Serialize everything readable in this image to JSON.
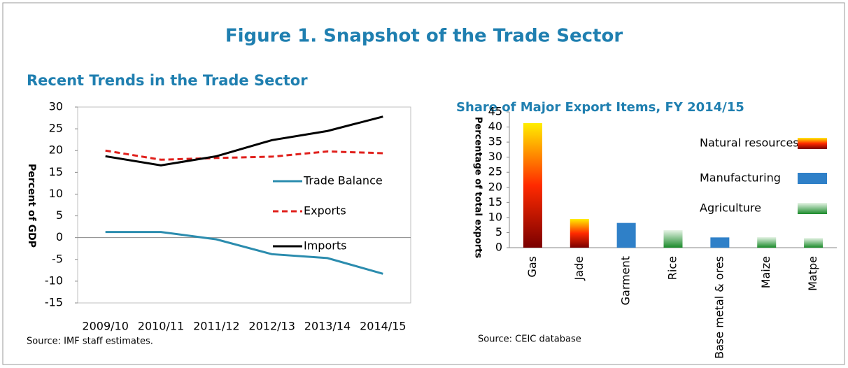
{
  "title": "Figure 1. Snapshot of the Trade Sector",
  "chart_data": [
    {
      "type": "line",
      "title": "Recent Trends in the Trade Sector",
      "y_label": "Percent of GDP",
      "source": "Source: IMF staff estimates.",
      "categories": [
        "2009/10",
        "2010/11",
        "2011/12",
        "2012/13",
        "2013/14",
        "2014/15"
      ],
      "series": [
        {
          "name": "Trade Balance",
          "color": "#2b8cae",
          "dash": false,
          "values": [
            1.3,
            1.3,
            -0.4,
            -3.8,
            -4.7,
            -8.3
          ]
        },
        {
          "name": "Exports",
          "color": "#e0201c",
          "dash": true,
          "values": [
            20.0,
            17.9,
            18.3,
            18.6,
            19.8,
            19.4
          ]
        },
        {
          "name": "Imports",
          "color": "#000000",
          "dash": false,
          "values": [
            18.7,
            16.6,
            18.7,
            22.4,
            24.5,
            27.8
          ]
        }
      ],
      "ylim": [
        -15,
        30
      ],
      "yticks": [
        -15,
        -10,
        -5,
        0,
        5,
        10,
        15,
        20,
        25,
        30
      ],
      "grid": false,
      "legend": "right"
    },
    {
      "type": "bar",
      "title": "Share of Major Export Items, FY 2014/15",
      "y_label": "Percentage of total exports",
      "source": "Source: CEIC database",
      "categories": [
        "Gas",
        "Jade",
        "Garment",
        "Rice",
        "Base metal & ores",
        "Maize",
        "Matpe"
      ],
      "series": [
        {
          "name": "Natural resources",
          "color": [
            "#ffee00",
            "#ff2a00",
            "#7a0000"
          ],
          "values": [
            41.3,
            9.5,
            null,
            null,
            null,
            null,
            null
          ]
        },
        {
          "name": "Manufacturing",
          "color": [
            "#2f80c8",
            "#2f80c8"
          ],
          "values": [
            null,
            null,
            8.2,
            null,
            3.4,
            null,
            null
          ]
        },
        {
          "name": "Agriculture",
          "color": [
            "#e6f4e6",
            "#1a8a2a"
          ],
          "values": [
            null,
            null,
            null,
            5.8,
            null,
            3.5,
            3.2
          ]
        }
      ],
      "ylim": [
        0,
        45
      ],
      "yticks": [
        0,
        5,
        10,
        15,
        20,
        25,
        30,
        35,
        40,
        45
      ],
      "grid": false,
      "legend": "upper right"
    }
  ]
}
